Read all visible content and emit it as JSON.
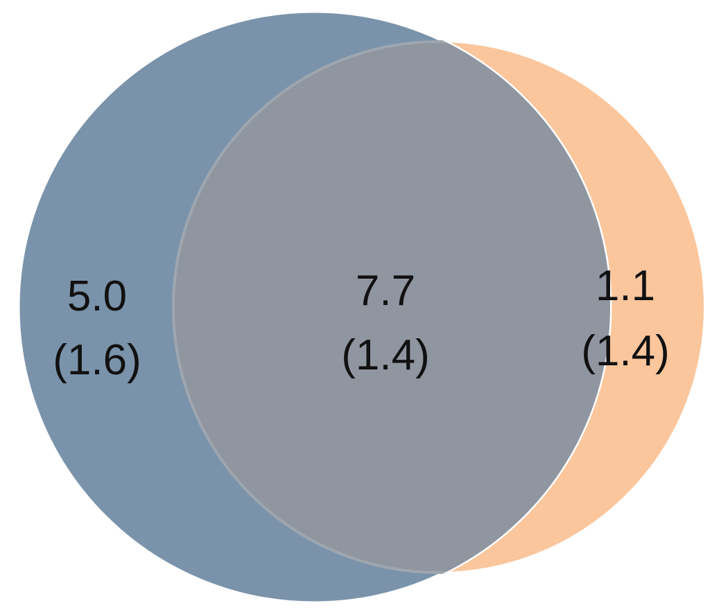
{
  "venn": {
    "colors": {
      "left_circle": "#7a93ab",
      "right_circle": "#fbc69c",
      "overlap": "#9096a0",
      "outline": "#ffffff"
    },
    "regions": {
      "left_only": {
        "value": "5.0",
        "sub": "(1.6)"
      },
      "overlap": {
        "value": "7.7",
        "sub": "(1.4)"
      },
      "right_only": {
        "value": "1.1",
        "sub": "(1.4)"
      }
    }
  }
}
